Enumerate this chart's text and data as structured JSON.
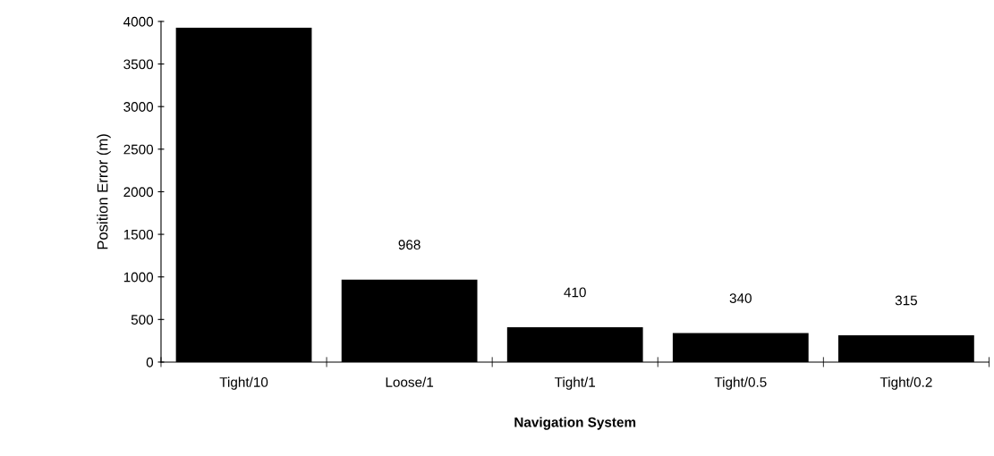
{
  "chart_data": {
    "type": "bar",
    "xlabel": "Navigation System",
    "ylabel": "Position Error (m)",
    "categories": [
      "Tight/10",
      "Loose/1",
      "Tight/1",
      "Tight/0.5",
      "Tight/0.2"
    ],
    "series": [
      {
        "color": "#000000",
        "values": [
          3925,
          968,
          410,
          340,
          315
        ],
        "value_labels": [
          null,
          "968",
          "410",
          "340",
          "315"
        ]
      }
    ],
    "ylim": [
      0,
      4000
    ],
    "yticks": [
      0,
      500,
      1000,
      1500,
      2000,
      2500,
      3000,
      3500,
      4000
    ],
    "grid": false,
    "legend": false
  }
}
